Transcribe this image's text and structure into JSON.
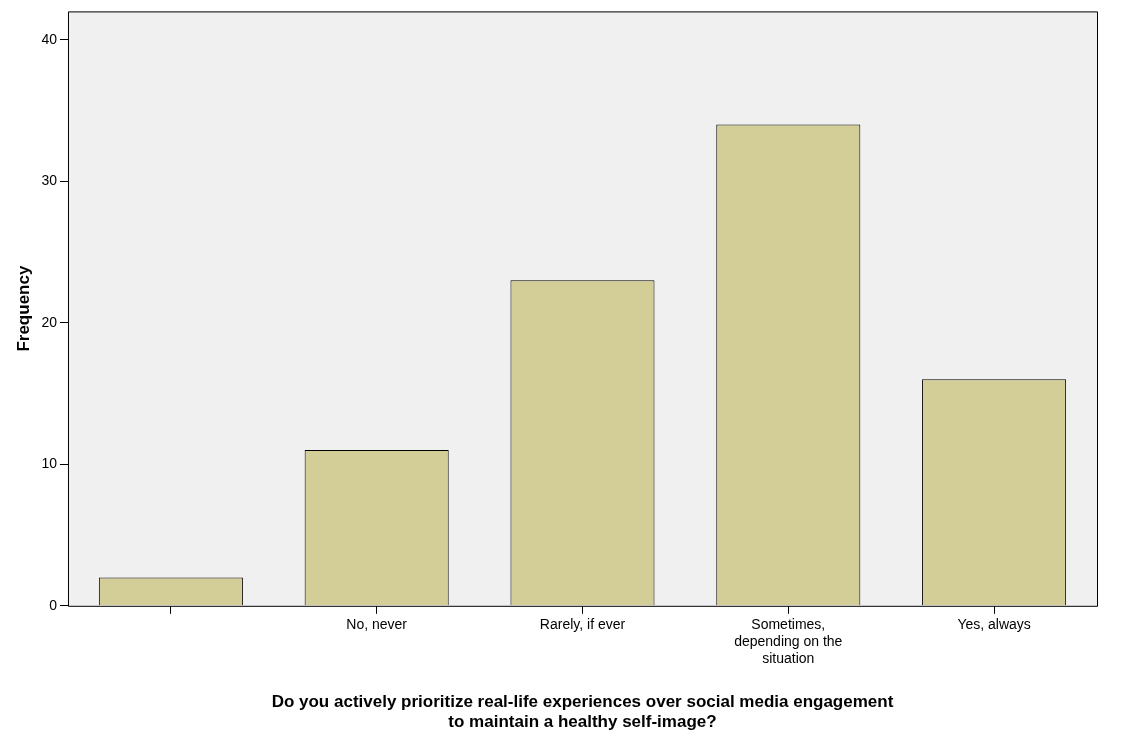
{
  "chart_data": {
    "type": "bar",
    "xlabel": "Do you actively prioritize real-life experiences over social media engagement\nto maintain a healthy self-image?",
    "ylabel": "Frequency",
    "categories": [
      null,
      "No, never",
      "Rarely, if ever",
      "Sometimes, depending on the situation",
      "Yes, always"
    ],
    "values": [
      2,
      11,
      23,
      34,
      16
    ],
    "color": "#d3ce97",
    "ylim": [
      0,
      42
    ],
    "yticks": [
      0,
      10,
      20,
      30,
      40
    ],
    "grid": false,
    "legend": false
  }
}
